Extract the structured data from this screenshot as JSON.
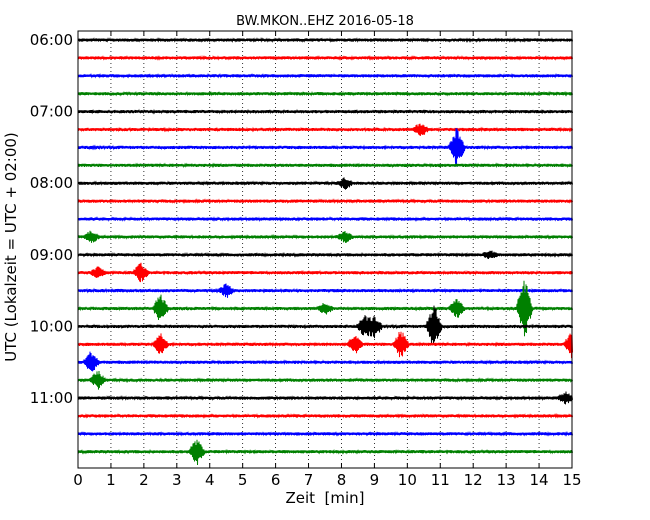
{
  "chart_data": {
    "type": "line",
    "title": "BW.MKON..EHZ 2016-05-18",
    "xlabel": "Zeit  [min]",
    "ylabel": "UTC (Lokalzeit = UTC + 02:00)",
    "xlim": [
      0,
      15
    ],
    "x_ticks": [
      "0",
      "1",
      "2",
      "3",
      "4",
      "5",
      "6",
      "7",
      "8",
      "9",
      "10",
      "11",
      "12",
      "13",
      "14",
      "15"
    ],
    "y_ticks": [
      "06:00",
      "07:00",
      "08:00",
      "09:00",
      "10:00",
      "11:00"
    ],
    "grid": "vertical dotted",
    "trace_colors": [
      "#000000",
      "#ff0000",
      "#0000ff",
      "#008000"
    ],
    "traces": [
      {
        "start": "06:00",
        "events": []
      },
      {
        "start": "06:15",
        "events": []
      },
      {
        "start": "06:30",
        "events": []
      },
      {
        "start": "06:45",
        "events": []
      },
      {
        "start": "07:00",
        "events": []
      },
      {
        "start": "07:15",
        "events": [
          {
            "t": 10.4,
            "amp": 0.35
          }
        ]
      },
      {
        "start": "07:30",
        "events": [
          {
            "t": 11.5,
            "amp": 1.1
          }
        ]
      },
      {
        "start": "07:45",
        "events": []
      },
      {
        "start": "08:00",
        "events": [
          {
            "t": 8.1,
            "amp": 0.3
          }
        ]
      },
      {
        "start": "08:15",
        "events": []
      },
      {
        "start": "08:30",
        "events": []
      },
      {
        "start": "08:45",
        "events": [
          {
            "t": 0.4,
            "amp": 0.3
          },
          {
            "t": 8.1,
            "amp": 0.3
          }
        ]
      },
      {
        "start": "09:00",
        "events": [
          {
            "t": 12.5,
            "amp": 0.2
          }
        ]
      },
      {
        "start": "09:15",
        "events": [
          {
            "t": 0.6,
            "amp": 0.3
          },
          {
            "t": 1.9,
            "amp": 0.5
          }
        ]
      },
      {
        "start": "09:30",
        "events": [
          {
            "t": 4.5,
            "amp": 0.35
          }
        ]
      },
      {
        "start": "09:45",
        "events": [
          {
            "t": 2.5,
            "amp": 0.8
          },
          {
            "t": 7.5,
            "amp": 0.3
          },
          {
            "t": 11.5,
            "amp": 0.5
          },
          {
            "t": 13.55,
            "amp": 1.8
          }
        ]
      },
      {
        "start": "10:00",
        "events": [
          {
            "t": 8.7,
            "amp": 0.6
          },
          {
            "t": 9.0,
            "amp": 0.6
          },
          {
            "t": 10.8,
            "amp": 1.3
          }
        ]
      },
      {
        "start": "10:15",
        "events": [
          {
            "t": 2.5,
            "amp": 0.6
          },
          {
            "t": 8.4,
            "amp": 0.5
          },
          {
            "t": 9.8,
            "amp": 0.8
          },
          {
            "t": 15.0,
            "amp": 0.8
          }
        ]
      },
      {
        "start": "10:30",
        "events": [
          {
            "t": 0.4,
            "amp": 0.6
          }
        ]
      },
      {
        "start": "10:45",
        "events": [
          {
            "t": 0.6,
            "amp": 0.5
          }
        ]
      },
      {
        "start": "11:00",
        "events": [
          {
            "t": 14.8,
            "amp": 0.3
          }
        ]
      },
      {
        "start": "11:15",
        "events": []
      },
      {
        "start": "11:30",
        "events": []
      },
      {
        "start": "11:45",
        "events": [
          {
            "t": 3.6,
            "amp": 0.7
          }
        ]
      }
    ]
  }
}
